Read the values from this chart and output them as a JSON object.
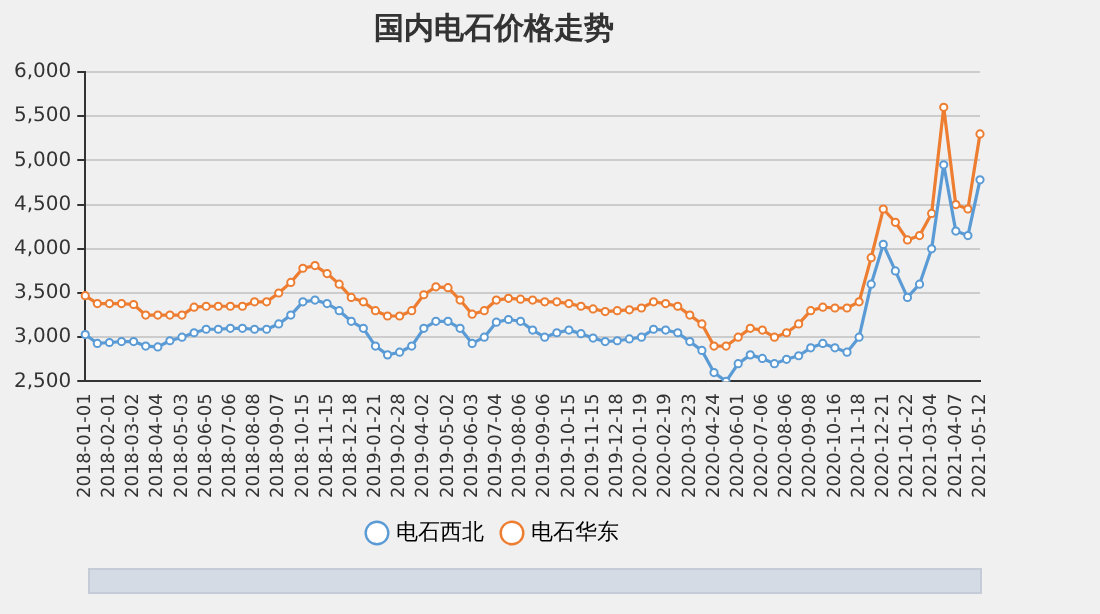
{
  "chart_data": {
    "type": "line",
    "title": "国内电石价格走势",
    "categories": [
      "2018-01-01",
      null,
      "2018-02-01",
      null,
      "2018-03-02",
      null,
      "2018-04-04",
      null,
      "2018-05-03",
      null,
      "2018-06-05",
      null,
      "2018-07-06",
      null,
      "2018-08-08",
      null,
      "2018-09-07",
      null,
      "2018-10-15",
      null,
      "2018-11-15",
      null,
      "2018-12-18",
      null,
      "2019-01-21",
      null,
      "2019-02-28",
      null,
      "2019-04-02",
      null,
      "2019-05-02",
      null,
      "2019-06-03",
      null,
      "2019-07-04",
      null,
      "2019-08-06",
      null,
      "2019-09-06",
      null,
      "2019-10-15",
      null,
      "2019-11-15",
      null,
      "2019-12-18",
      null,
      "2020-01-19",
      null,
      "2020-02-19",
      null,
      "2020-03-23",
      null,
      "2020-04-24",
      null,
      "2020-06-01",
      null,
      "2020-07-06",
      null,
      "2020-08-06",
      null,
      "2020-09-08",
      null,
      "2020-10-16",
      null,
      "2020-11-18",
      null,
      "2020-12-21",
      null,
      "2021-01-22",
      null,
      "2021-03-04",
      null,
      "2021-04-07",
      null,
      "2021-05-12"
    ],
    "series": [
      {
        "name": "电石西北",
        "color": "#5b9bd5",
        "values": [
          3030,
          2930,
          2940,
          2950,
          2950,
          2900,
          2890,
          2960,
          3000,
          3050,
          3090,
          3090,
          3100,
          3100,
          3090,
          3090,
          3150,
          3250,
          3400,
          3420,
          3380,
          3300,
          3180,
          3100,
          2900,
          2800,
          2830,
          2900,
          3100,
          3180,
          3180,
          3100,
          2930,
          3000,
          3170,
          3200,
          3180,
          3080,
          3000,
          3050,
          3080,
          3040,
          2990,
          2950,
          2960,
          2980,
          3000,
          3090,
          3080,
          3050,
          2950,
          2850,
          2600,
          2500,
          2700,
          2800,
          2760,
          2700,
          2750,
          2790,
          2880,
          2930,
          2880,
          2830,
          3000,
          3600,
          4050,
          3750,
          3450,
          3600,
          4000,
          4950,
          4200,
          4150,
          4780
        ]
      },
      {
        "name": "电石华东",
        "color": "#ed7d31",
        "values": [
          3470,
          3380,
          3380,
          3380,
          3370,
          3250,
          3250,
          3250,
          3250,
          3340,
          3350,
          3350,
          3350,
          3350,
          3400,
          3400,
          3500,
          3620,
          3780,
          3810,
          3720,
          3600,
          3450,
          3400,
          3300,
          3240,
          3240,
          3300,
          3480,
          3570,
          3560,
          3420,
          3260,
          3300,
          3420,
          3440,
          3430,
          3420,
          3400,
          3400,
          3380,
          3350,
          3320,
          3290,
          3300,
          3310,
          3330,
          3400,
          3380,
          3350,
          3250,
          3150,
          2900,
          2900,
          3000,
          3100,
          3080,
          3000,
          3050,
          3150,
          3300,
          3340,
          3330,
          3330,
          3400,
          3900,
          4450,
          4300,
          4100,
          4150,
          4400,
          5600,
          4500,
          4450,
          5300
        ]
      }
    ],
    "ylim": [
      2500,
      6000
    ],
    "yticks": [
      {
        "value": 2500,
        "label": "2,500"
      },
      {
        "value": 3000,
        "label": "3,000"
      },
      {
        "value": 3500,
        "label": "3,500"
      },
      {
        "value": 4000,
        "label": "4,000"
      },
      {
        "value": 4500,
        "label": "4,500"
      },
      {
        "value": 5000,
        "label": "5,000"
      },
      {
        "value": 5500,
        "label": "5,500"
      },
      {
        "value": 6000,
        "label": "6,000"
      }
    ],
    "grid": "y",
    "legend": "bottom",
    "marker": "circle",
    "line_style": "solid"
  }
}
